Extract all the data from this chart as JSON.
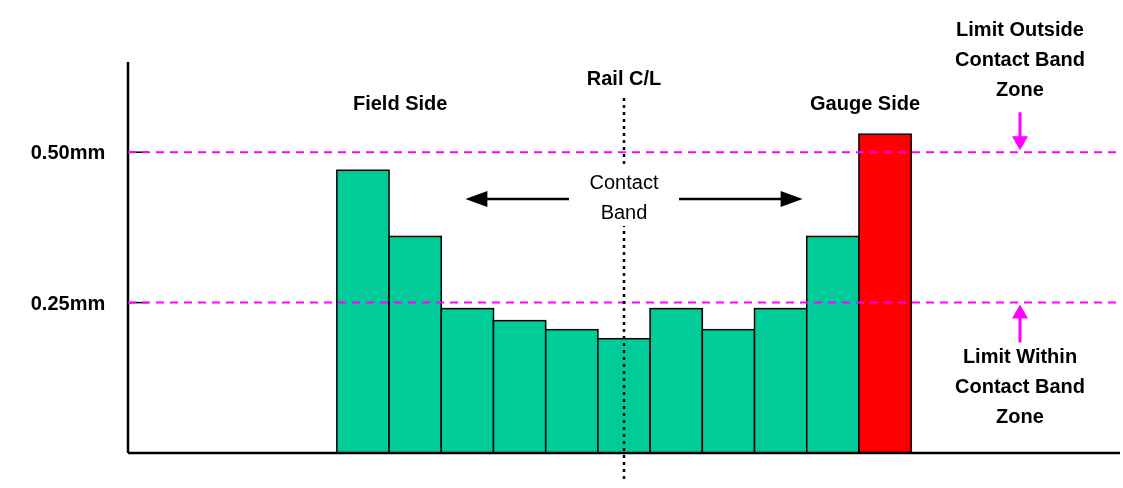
{
  "chart_data": {
    "type": "bar",
    "categories": [
      null,
      null,
      null,
      null,
      null,
      null,
      null,
      null,
      null,
      null,
      null,
      null,
      null,
      null,
      null,
      null,
      null,
      null,
      null
    ],
    "values": [
      null,
      null,
      null,
      null,
      0.47,
      0.36,
      0.24,
      0.22,
      0.205,
      0.19,
      0.24,
      0.205,
      0.24,
      0.36,
      0.53,
      null,
      null,
      null,
      null
    ],
    "colors": [
      null,
      null,
      null,
      null,
      "#00cc99",
      "#00cc99",
      "#00cc99",
      "#00cc99",
      "#00cc99",
      "#00cc99",
      "#00cc99",
      "#00cc99",
      "#00cc99",
      "#00cc99",
      "#ff0000",
      null,
      null,
      null,
      null
    ],
    "ylim": [
      0,
      0.65
    ],
    "yticks": [
      {
        "value": 0.25,
        "label": "0.25mm"
      },
      {
        "value": 0.5,
        "label": "0.50mm"
      }
    ],
    "tick_labels": "y",
    "ref_lines": [
      {
        "axis": "y",
        "value": 0.5,
        "label": "Limit Outside Contact Band Zone",
        "color": "#ff00ff",
        "line_style": "dashed"
      },
      {
        "axis": "y",
        "value": 0.25,
        "label": "Limit Within Contact Band Zone",
        "color": "#ff00ff",
        "line_style": "dashed"
      }
    ],
    "annotations": [
      "Rail C/L",
      "Field Side",
      "Gauge Side",
      "Contact Band"
    ]
  }
}
